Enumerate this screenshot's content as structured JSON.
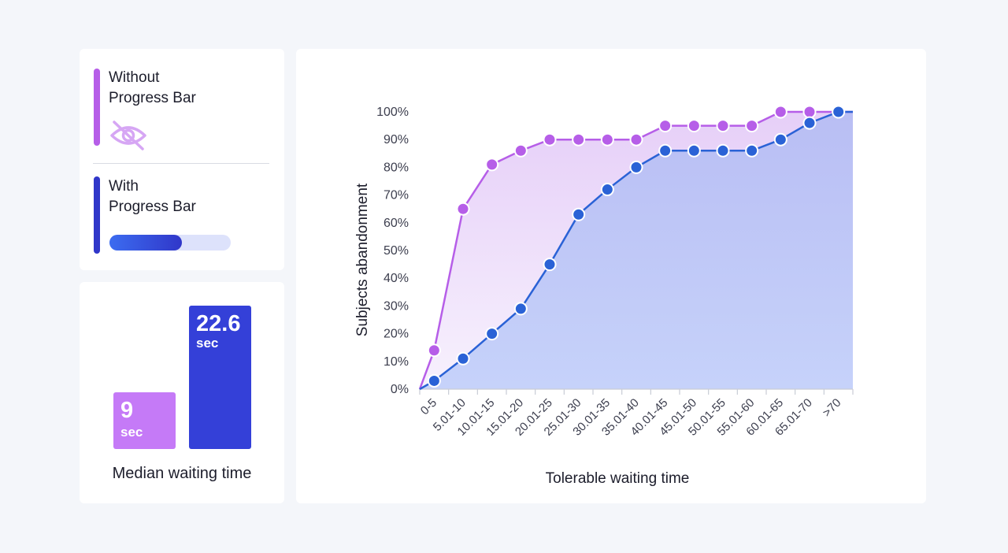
{
  "legend": {
    "without": {
      "label": "Without\nProgress Bar",
      "icon": "eye-slash-icon",
      "color": "#b65ee8"
    },
    "with": {
      "label": "With\nProgress Bar",
      "icon": "progress-bar-icon",
      "color": "#3037c9",
      "progress_fill": 0.6
    }
  },
  "median": {
    "title": "Median waiting time",
    "without": {
      "value": "9",
      "unit": "sec",
      "color": "#c57af7"
    },
    "with": {
      "value": "22.6",
      "unit": "sec",
      "color": "#3440d8"
    }
  },
  "chart_data": {
    "type": "area",
    "xlabel": "Tolerable waiting time",
    "ylabel": "Subjects abandonment",
    "ylim": [
      0,
      100
    ],
    "yticks": [
      "0%",
      "10%",
      "20%",
      "30%",
      "40%",
      "50%",
      "60%",
      "70%",
      "80%",
      "90%",
      "100%"
    ],
    "categories": [
      "0-5",
      "5.01-10",
      "10.01-15",
      "15.01-20",
      "20.01-25",
      "25.01-30",
      "30.01-35",
      "35.01-40",
      "40.01-45",
      "45.01-50",
      "50.01-55",
      "55.01-60",
      "60.01-65",
      "65.01-70",
      ">70"
    ],
    "series": [
      {
        "key": "without",
        "color": "#b65ee8",
        "values": [
          14,
          65,
          81,
          86,
          90,
          90,
          90,
          90,
          95,
          95,
          95,
          95,
          100,
          100,
          100
        ]
      },
      {
        "key": "with",
        "color": "#2a62d6",
        "values": [
          3,
          11,
          20,
          29,
          45,
          63,
          72,
          80,
          86,
          86,
          86,
          86,
          90,
          96,
          100
        ]
      }
    ]
  }
}
